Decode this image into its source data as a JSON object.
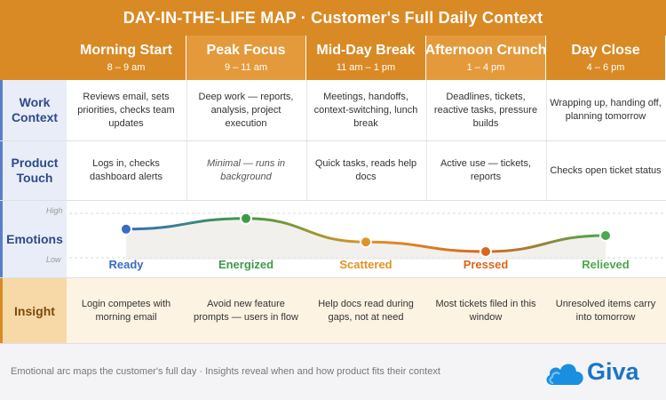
{
  "title": "DAY-IN-THE-LIFE MAP · Customer's Full Daily Context",
  "stages": [
    {
      "name": "Morning Start",
      "time": "8 – 9 am"
    },
    {
      "name": "Peak Focus",
      "time": "9 – 11 am"
    },
    {
      "name": "Mid-Day Break",
      "time": "11 am – 1 pm"
    },
    {
      "name": "Afternoon Crunch",
      "time": "1 – 4 pm"
    },
    {
      "name": "Day Close",
      "time": "4 – 6 pm"
    }
  ],
  "rows": {
    "work_context": {
      "label": "Work Context",
      "cells": [
        "Reviews email, sets priorities, checks team updates",
        "Deep work — reports, analysis, project execution",
        "Meetings, handoffs, context-switching, lunch break",
        "Deadlines, tickets, reactive tasks, pressure builds",
        "Wrapping up, handing off, planning tomorrow"
      ]
    },
    "product_touch": {
      "label": "Product Touch",
      "cells": [
        "Logs in, checks dashboard alerts",
        "Minimal — runs in background",
        "Quick tasks, reads help docs",
        "Active use — tickets, reports",
        "Checks open ticket status"
      ]
    },
    "emotions": {
      "label": "Emotions",
      "axis_high": "High",
      "axis_low": "Low",
      "states": [
        "Ready",
        "Energized",
        "Scattered",
        "Pressed",
        "Relieved"
      ],
      "levels": [
        0.62,
        0.82,
        0.38,
        0.2,
        0.5
      ]
    },
    "insight": {
      "label": "Insight",
      "cells": [
        "Login competes with morning email",
        "Avoid new feature prompts — users in flow",
        "Help docs read during gaps, not at need",
        "Most tickets filed in this window",
        "Unresolved items carry into tomorrow"
      ]
    }
  },
  "footer": "Emotional arc maps the customer's full day · Insights reveal when and how product fits their context",
  "logo": {
    "word": "Giva",
    "mark": "cloud-logo"
  },
  "colors": {
    "header": "#d98a25",
    "header_alt": "#e49a3b",
    "emotion_colors": [
      "#3a6bc4",
      "#3f9a46",
      "#e09326",
      "#d9661c",
      "#4aa84f"
    ]
  }
}
